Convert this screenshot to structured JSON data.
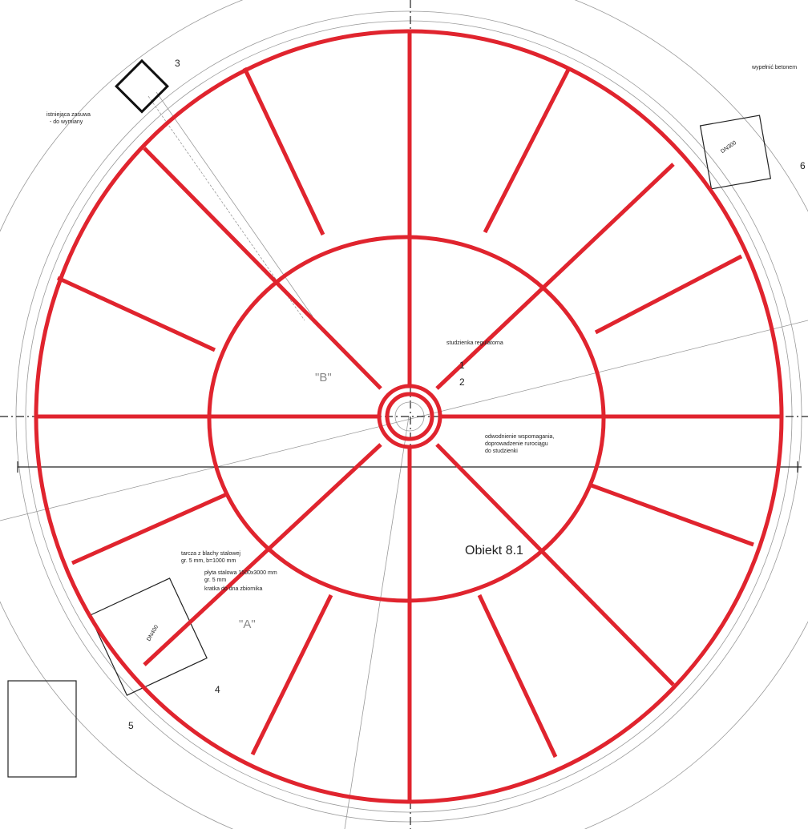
{
  "drawing": {
    "object_name": "Obiekt 8.1",
    "marker_a": "\"A\"",
    "marker_b": "\"B\"",
    "callouts": [
      "1",
      "2",
      "3",
      "4",
      "5",
      "6"
    ],
    "notes": {
      "regulator_well": "studzienka regulatorna",
      "drainage": [
        "odwodnienie wspomagania,",
        "doprowadzenie rurociągu",
        "do studzienki"
      ],
      "plate": [
        "tarcza z blachy stalowej",
        "gr. 5 mm, b=1000 mm",
        "płyta stalowa 1500x3000 mm",
        "gr. 5 mm",
        "kratka do dna zbiornika"
      ],
      "valve": [
        "istniejąca zasuwa",
        "- do wymiany"
      ],
      "concrete": "wypełnić betonem",
      "pipes": [
        "DN300",
        "DN400"
      ]
    }
  }
}
